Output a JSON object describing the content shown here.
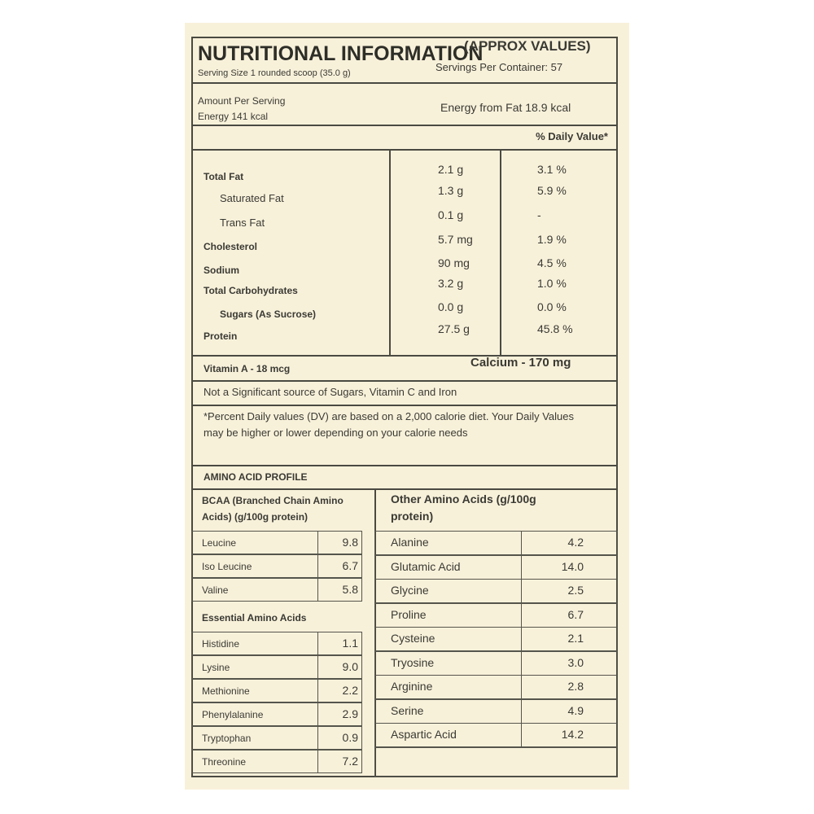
{
  "header": {
    "title": "NUTRITIONAL INFORMATION",
    "title_suffix": "(APPROX VALUES)",
    "serving_size": "Serving Size 1 rounded scoop (35.0 g)",
    "servings_per_container": "Servings Per Container: 57"
  },
  "amount": {
    "label": "Amount Per Serving",
    "energy": "Energy 141 kcal",
    "energy_from_fat": "Energy from Fat 18.9 kcal"
  },
  "daily_value_header": "% Daily Value*",
  "nutrients": [
    {
      "name": "Total Fat",
      "amount": "2.1 g",
      "dv": "3.1 %",
      "bold": true,
      "indent": false
    },
    {
      "name": "Saturated Fat",
      "amount": "1.3 g",
      "dv": "5.9 %",
      "bold": false,
      "indent": true
    },
    {
      "name": "Trans Fat",
      "amount": "0.1 g",
      "dv": "-",
      "bold": false,
      "indent": true
    },
    {
      "name": "Cholesterol",
      "amount": "5.7 mg",
      "dv": "1.9 %",
      "bold": true,
      "indent": false
    },
    {
      "name": "Sodium",
      "amount": "90 mg",
      "dv": "4.5 %",
      "bold": true,
      "indent": false
    },
    {
      "name": "Total Carbohydrates",
      "amount": "3.2 g",
      "dv": "1.0 %",
      "bold": true,
      "indent": false
    },
    {
      "name": "Sugars (As Sucrose)",
      "amount": "0.0 g",
      "dv": "0.0 %",
      "bold": true,
      "indent": true
    },
    {
      "name": "Protein",
      "amount": "27.5 g",
      "dv": "45.8 %",
      "bold": true,
      "indent": false
    }
  ],
  "vitamin_a": "Vitamin A - 18 mcg",
  "calcium": "Calcium - 170 mg",
  "not_significant": "Not a Significant source of Sugars, Vitamin C and Iron",
  "footnote": "*Percent Daily values (DV) are based on a 2,000 calorie diet. Your Daily Values may be higher or lower depending on your calorie needs",
  "amino": {
    "title": "AMINO ACID PROFILE",
    "bcaa_header": "BCAA (Branched Chain Amino Acids) (g/100g protein)",
    "other_header": "Other Amino Acids (g/100g protein)",
    "bcaa": [
      {
        "name": "Leucine",
        "value": "9.8"
      },
      {
        "name": "Iso Leucine",
        "value": "6.7"
      },
      {
        "name": "Valine",
        "value": "5.8"
      }
    ],
    "essential_header": "Essential Amino Acids",
    "essential": [
      {
        "name": "Histidine",
        "value": "1.1"
      },
      {
        "name": "Lysine",
        "value": "9.0"
      },
      {
        "name": "Methionine",
        "value": "2.2"
      },
      {
        "name": "Phenylalanine",
        "value": "2.9"
      },
      {
        "name": "Tryptophan",
        "value": "0.9"
      },
      {
        "name": "Threonine",
        "value": "7.2"
      }
    ],
    "other": [
      {
        "name": "Alanine",
        "value": "4.2"
      },
      {
        "name": "Glutamic Acid",
        "value": "14.0"
      },
      {
        "name": "Glycine",
        "value": "2.5"
      },
      {
        "name": "Proline",
        "value": "6.7"
      },
      {
        "name": "Cysteine",
        "value": "2.1"
      },
      {
        "name": "Tryosine",
        "value": "3.0"
      },
      {
        "name": "Arginine",
        "value": "2.8"
      },
      {
        "name": "Serine",
        "value": "4.9"
      },
      {
        "name": "Aspartic Acid",
        "value": "14.2"
      }
    ]
  }
}
